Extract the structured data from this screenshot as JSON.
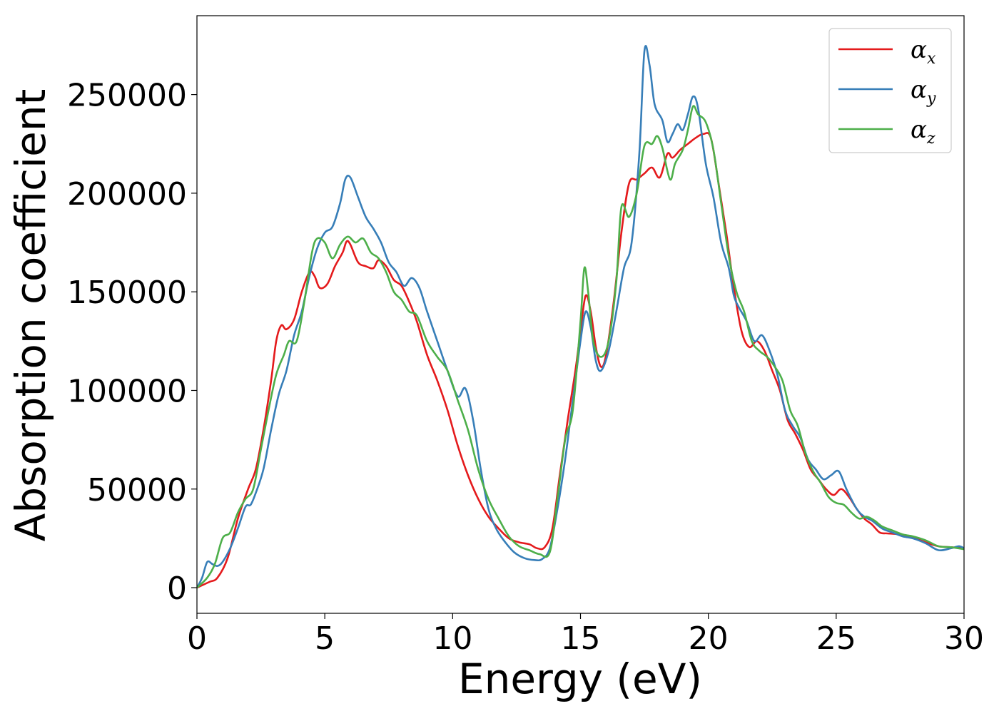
{
  "chart_data": {
    "type": "line",
    "title": "",
    "xlabel": "Energy (eV)",
    "ylabel": "Absorption coefficient",
    "xlim": [
      0,
      30
    ],
    "ylim": [
      -13000,
      290000
    ],
    "x_ticks": [
      0,
      5,
      10,
      15,
      20,
      25,
      30
    ],
    "x_tick_labels": [
      "0",
      "5",
      "10",
      "15",
      "20",
      "25",
      "30"
    ],
    "y_ticks": [
      0,
      50000,
      100000,
      150000,
      200000,
      250000
    ],
    "y_tick_labels": [
      "0",
      "50000",
      "100000",
      "150000",
      "200000",
      "250000"
    ],
    "grid": false,
    "legend_position": "top-right",
    "series": [
      {
        "name": "αx",
        "name_symbol": "α",
        "name_sub": "x",
        "color": "#e41a1c",
        "points": [
          [
            0,
            0
          ],
          [
            0.5,
            3000
          ],
          [
            0.8,
            5000
          ],
          [
            1.2,
            15000
          ],
          [
            1.6,
            35000
          ],
          [
            2,
            50000
          ],
          [
            2.3,
            60000
          ],
          [
            2.6,
            80000
          ],
          [
            2.9,
            105000
          ],
          [
            3.1,
            125000
          ],
          [
            3.3,
            133000
          ],
          [
            3.5,
            131000
          ],
          [
            3.8,
            136000
          ],
          [
            4.1,
            150000
          ],
          [
            4.4,
            160000
          ],
          [
            4.6,
            158000
          ],
          [
            4.8,
            152000
          ],
          [
            5.1,
            154000
          ],
          [
            5.4,
            163000
          ],
          [
            5.7,
            170000
          ],
          [
            5.85,
            175500
          ],
          [
            6.0,
            174000
          ],
          [
            6.3,
            165000
          ],
          [
            6.6,
            163000
          ],
          [
            6.9,
            162000
          ],
          [
            7.1,
            166000
          ],
          [
            7.4,
            163000
          ],
          [
            7.7,
            156000
          ],
          [
            8.0,
            153000
          ],
          [
            8.3,
            145000
          ],
          [
            8.6,
            135000
          ],
          [
            9.0,
            118000
          ],
          [
            9.4,
            105000
          ],
          [
            9.8,
            90000
          ],
          [
            10.2,
            72000
          ],
          [
            10.6,
            57000
          ],
          [
            11.0,
            45000
          ],
          [
            11.4,
            36000
          ],
          [
            11.8,
            30000
          ],
          [
            12.2,
            25000
          ],
          [
            12.6,
            23000
          ],
          [
            13.0,
            22000
          ],
          [
            13.3,
            20000
          ],
          [
            13.6,
            20500
          ],
          [
            13.9,
            30000
          ],
          [
            14.2,
            58000
          ],
          [
            14.5,
            85000
          ],
          [
            14.8,
            110000
          ],
          [
            15.0,
            130000
          ],
          [
            15.2,
            148000
          ],
          [
            15.4,
            140000
          ],
          [
            15.6,
            122000
          ],
          [
            15.8,
            112000
          ],
          [
            16.0,
            118000
          ],
          [
            16.3,
            145000
          ],
          [
            16.6,
            180000
          ],
          [
            16.9,
            205000
          ],
          [
            17.2,
            207000
          ],
          [
            17.5,
            210000
          ],
          [
            17.8,
            213000
          ],
          [
            18.1,
            208000
          ],
          [
            18.4,
            220000
          ],
          [
            18.6,
            218000
          ],
          [
            18.9,
            222000
          ],
          [
            19.2,
            225000
          ],
          [
            19.5,
            228000
          ],
          [
            19.8,
            230000
          ],
          [
            20.1,
            228000
          ],
          [
            20.4,
            205000
          ],
          [
            20.7,
            180000
          ],
          [
            21.0,
            152000
          ],
          [
            21.3,
            130000
          ],
          [
            21.6,
            122000
          ],
          [
            21.9,
            125000
          ],
          [
            22.2,
            120000
          ],
          [
            22.5,
            110000
          ],
          [
            22.8,
            100000
          ],
          [
            23.1,
            85000
          ],
          [
            23.4,
            78000
          ],
          [
            23.7,
            70000
          ],
          [
            24.0,
            60000
          ],
          [
            24.3,
            55000
          ],
          [
            24.6,
            50000
          ],
          [
            24.9,
            47000
          ],
          [
            25.2,
            50000
          ],
          [
            25.5,
            46000
          ],
          [
            25.8,
            40000
          ],
          [
            26.1,
            35000
          ],
          [
            26.4,
            32000
          ],
          [
            26.7,
            28000
          ],
          [
            27.0,
            27500
          ],
          [
            27.5,
            27000
          ],
          [
            28.0,
            25500
          ],
          [
            28.5,
            23000
          ],
          [
            29.0,
            21000
          ],
          [
            29.5,
            20500
          ],
          [
            30,
            20000
          ]
        ]
      },
      {
        "name": "αy",
        "name_symbol": "α",
        "name_sub": "y",
        "color": "#377eb8",
        "points": [
          [
            0,
            0
          ],
          [
            0.2,
            5000
          ],
          [
            0.4,
            13000
          ],
          [
            0.6,
            12000
          ],
          [
            0.8,
            11000
          ],
          [
            1.0,
            13000
          ],
          [
            1.3,
            20000
          ],
          [
            1.6,
            30000
          ],
          [
            1.9,
            41000
          ],
          [
            2.1,
            42000
          ],
          [
            2.3,
            48000
          ],
          [
            2.6,
            60000
          ],
          [
            2.9,
            80000
          ],
          [
            3.2,
            98000
          ],
          [
            3.5,
            110000
          ],
          [
            3.8,
            128000
          ],
          [
            4.1,
            140000
          ],
          [
            4.4,
            158000
          ],
          [
            4.7,
            172000
          ],
          [
            5.0,
            180000
          ],
          [
            5.3,
            183000
          ],
          [
            5.6,
            195000
          ],
          [
            5.8,
            207000
          ],
          [
            6.0,
            208000
          ],
          [
            6.3,
            198000
          ],
          [
            6.6,
            188000
          ],
          [
            6.9,
            182000
          ],
          [
            7.2,
            175000
          ],
          [
            7.5,
            165000
          ],
          [
            7.8,
            160000
          ],
          [
            8.1,
            153000
          ],
          [
            8.4,
            157000
          ],
          [
            8.7,
            152000
          ],
          [
            9.0,
            140000
          ],
          [
            9.4,
            125000
          ],
          [
            9.8,
            110000
          ],
          [
            10.2,
            97000
          ],
          [
            10.5,
            101000
          ],
          [
            10.8,
            85000
          ],
          [
            11.1,
            60000
          ],
          [
            11.4,
            40000
          ],
          [
            11.7,
            30000
          ],
          [
            12.0,
            24000
          ],
          [
            12.4,
            18000
          ],
          [
            12.8,
            15000
          ],
          [
            13.2,
            14000
          ],
          [
            13.5,
            14500
          ],
          [
            13.8,
            20000
          ],
          [
            14.1,
            40000
          ],
          [
            14.4,
            65000
          ],
          [
            14.7,
            95000
          ],
          [
            15.0,
            125000
          ],
          [
            15.2,
            140000
          ],
          [
            15.4,
            132000
          ],
          [
            15.6,
            115000
          ],
          [
            15.8,
            110000
          ],
          [
            16.1,
            120000
          ],
          [
            16.4,
            140000
          ],
          [
            16.7,
            162000
          ],
          [
            17.0,
            175000
          ],
          [
            17.3,
            220000
          ],
          [
            17.5,
            272000
          ],
          [
            17.7,
            265000
          ],
          [
            17.9,
            245000
          ],
          [
            18.2,
            237000
          ],
          [
            18.4,
            226000
          ],
          [
            18.6,
            230000
          ],
          [
            18.8,
            235000
          ],
          [
            19.0,
            232000
          ],
          [
            19.2,
            240000
          ],
          [
            19.4,
            249000
          ],
          [
            19.6,
            243000
          ],
          [
            19.9,
            215000
          ],
          [
            20.2,
            198000
          ],
          [
            20.5,
            175000
          ],
          [
            20.8,
            162000
          ],
          [
            21.0,
            148000
          ],
          [
            21.2,
            142000
          ],
          [
            21.5,
            135000
          ],
          [
            21.8,
            125000
          ],
          [
            22.1,
            128000
          ],
          [
            22.4,
            120000
          ],
          [
            22.7,
            108000
          ],
          [
            23.0,
            90000
          ],
          [
            23.3,
            82000
          ],
          [
            23.6,
            76000
          ],
          [
            23.9,
            65000
          ],
          [
            24.2,
            60000
          ],
          [
            24.5,
            55000
          ],
          [
            24.8,
            57000
          ],
          [
            25.1,
            59000
          ],
          [
            25.4,
            50000
          ],
          [
            25.8,
            40000
          ],
          [
            26.1,
            36000
          ],
          [
            26.4,
            34000
          ],
          [
            26.8,
            30000
          ],
          [
            27.2,
            28000
          ],
          [
            27.6,
            26000
          ],
          [
            28.0,
            25000
          ],
          [
            28.5,
            22500
          ],
          [
            29.0,
            19000
          ],
          [
            29.5,
            20000
          ],
          [
            29.8,
            21000
          ],
          [
            30,
            20000
          ]
        ]
      },
      {
        "name": "αz",
        "name_symbol": "α",
        "name_sub": "z",
        "color": "#4daf4a",
        "points": [
          [
            0,
            0
          ],
          [
            0.4,
            5000
          ],
          [
            0.7,
            12000
          ],
          [
            1.0,
            25000
          ],
          [
            1.3,
            28000
          ],
          [
            1.6,
            38000
          ],
          [
            1.9,
            45000
          ],
          [
            2.2,
            50000
          ],
          [
            2.5,
            70000
          ],
          [
            2.8,
            90000
          ],
          [
            3.1,
            108000
          ],
          [
            3.4,
            118000
          ],
          [
            3.6,
            125000
          ],
          [
            3.9,
            125000
          ],
          [
            4.2,
            145000
          ],
          [
            4.5,
            170000
          ],
          [
            4.7,
            177000
          ],
          [
            5.0,
            175000
          ],
          [
            5.3,
            167000
          ],
          [
            5.6,
            174000
          ],
          [
            5.9,
            178000
          ],
          [
            6.2,
            175000
          ],
          [
            6.5,
            177000
          ],
          [
            6.8,
            170000
          ],
          [
            7.1,
            167000
          ],
          [
            7.4,
            160000
          ],
          [
            7.7,
            150000
          ],
          [
            8.0,
            146000
          ],
          [
            8.3,
            140000
          ],
          [
            8.6,
            138000
          ],
          [
            9.0,
            125000
          ],
          [
            9.4,
            117000
          ],
          [
            9.8,
            110000
          ],
          [
            10.2,
            95000
          ],
          [
            10.6,
            80000
          ],
          [
            11.0,
            60000
          ],
          [
            11.4,
            45000
          ],
          [
            11.8,
            35000
          ],
          [
            12.2,
            26000
          ],
          [
            12.6,
            21000
          ],
          [
            13.0,
            19000
          ],
          [
            13.4,
            17000
          ],
          [
            13.8,
            18000
          ],
          [
            14.1,
            45000
          ],
          [
            14.4,
            75000
          ],
          [
            14.7,
            90000
          ],
          [
            15.0,
            135000
          ],
          [
            15.15,
            162000
          ],
          [
            15.3,
            150000
          ],
          [
            15.5,
            125000
          ],
          [
            15.8,
            117000
          ],
          [
            16.1,
            125000
          ],
          [
            16.4,
            155000
          ],
          [
            16.6,
            193000
          ],
          [
            16.9,
            188000
          ],
          [
            17.2,
            200000
          ],
          [
            17.5,
            224000
          ],
          [
            17.8,
            225000
          ],
          [
            18.0,
            229000
          ],
          [
            18.2,
            223000
          ],
          [
            18.5,
            207000
          ],
          [
            18.7,
            215000
          ],
          [
            19.0,
            222000
          ],
          [
            19.2,
            232000
          ],
          [
            19.4,
            244000
          ],
          [
            19.6,
            240000
          ],
          [
            19.9,
            236000
          ],
          [
            20.2,
            222000
          ],
          [
            20.5,
            195000
          ],
          [
            20.8,
            168000
          ],
          [
            21.1,
            150000
          ],
          [
            21.4,
            140000
          ],
          [
            21.7,
            125000
          ],
          [
            22.0,
            120000
          ],
          [
            22.3,
            117000
          ],
          [
            22.6,
            112000
          ],
          [
            22.9,
            105000
          ],
          [
            23.2,
            90000
          ],
          [
            23.5,
            82000
          ],
          [
            23.8,
            68000
          ],
          [
            24.1,
            59000
          ],
          [
            24.4,
            53000
          ],
          [
            24.7,
            46000
          ],
          [
            25.0,
            43000
          ],
          [
            25.3,
            42000
          ],
          [
            25.6,
            38000
          ],
          [
            25.9,
            35000
          ],
          [
            26.2,
            36000
          ],
          [
            26.5,
            34000
          ],
          [
            26.8,
            31000
          ],
          [
            27.2,
            29000
          ],
          [
            27.6,
            27000
          ],
          [
            28.0,
            26000
          ],
          [
            28.5,
            24000
          ],
          [
            29.0,
            21000
          ],
          [
            29.5,
            20500
          ],
          [
            30,
            19500
          ]
        ]
      }
    ]
  }
}
